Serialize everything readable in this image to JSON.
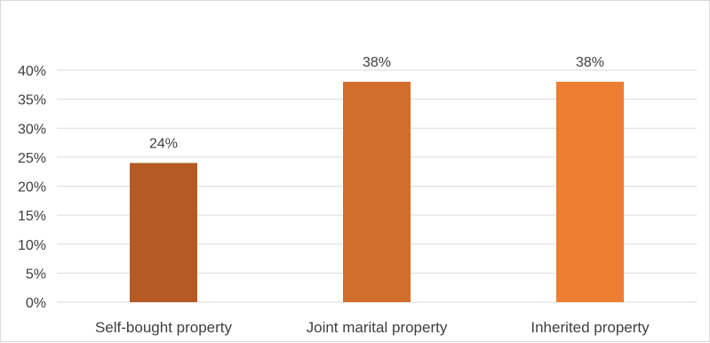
{
  "chart_data": {
    "type": "bar",
    "categories": [
      "Self-bought property",
      "Joint marital property",
      "Inherited property"
    ],
    "values": [
      24,
      38,
      38
    ],
    "data_labels": [
      "24%",
      "38%",
      "38%"
    ],
    "bar_colors": [
      "#b55a22",
      "#d36d2b",
      "#ed7d31"
    ],
    "title": "",
    "xlabel": "",
    "ylabel": "",
    "ylim": [
      0,
      40
    ],
    "y_ticks": [
      0,
      5,
      10,
      15,
      20,
      25,
      30,
      35,
      40
    ],
    "y_tick_labels": [
      "0%",
      "5%",
      "10%",
      "15%",
      "20%",
      "25%",
      "30%",
      "35%",
      "40%"
    ],
    "grid": true,
    "legend": "none",
    "gridline_color": "#d9d9d9"
  }
}
